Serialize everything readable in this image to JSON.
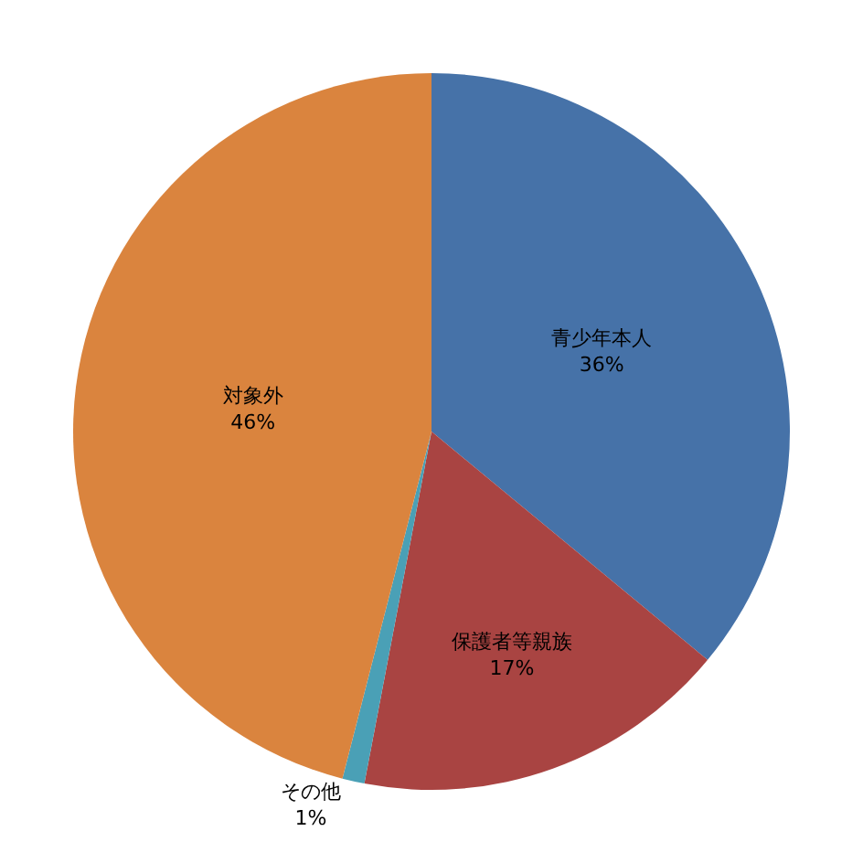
{
  "chart_data": {
    "type": "pie",
    "categories": [
      "青少年本人",
      "保護者等親族",
      "その他",
      "対象外"
    ],
    "values": [
      36,
      17,
      1,
      46
    ],
    "value_labels": [
      "36%",
      "17%",
      "1%",
      "46%"
    ],
    "colors": [
      "#4672a8",
      "#a94442",
      "#4aa0b6",
      "#da843e"
    ],
    "legend": false
  }
}
